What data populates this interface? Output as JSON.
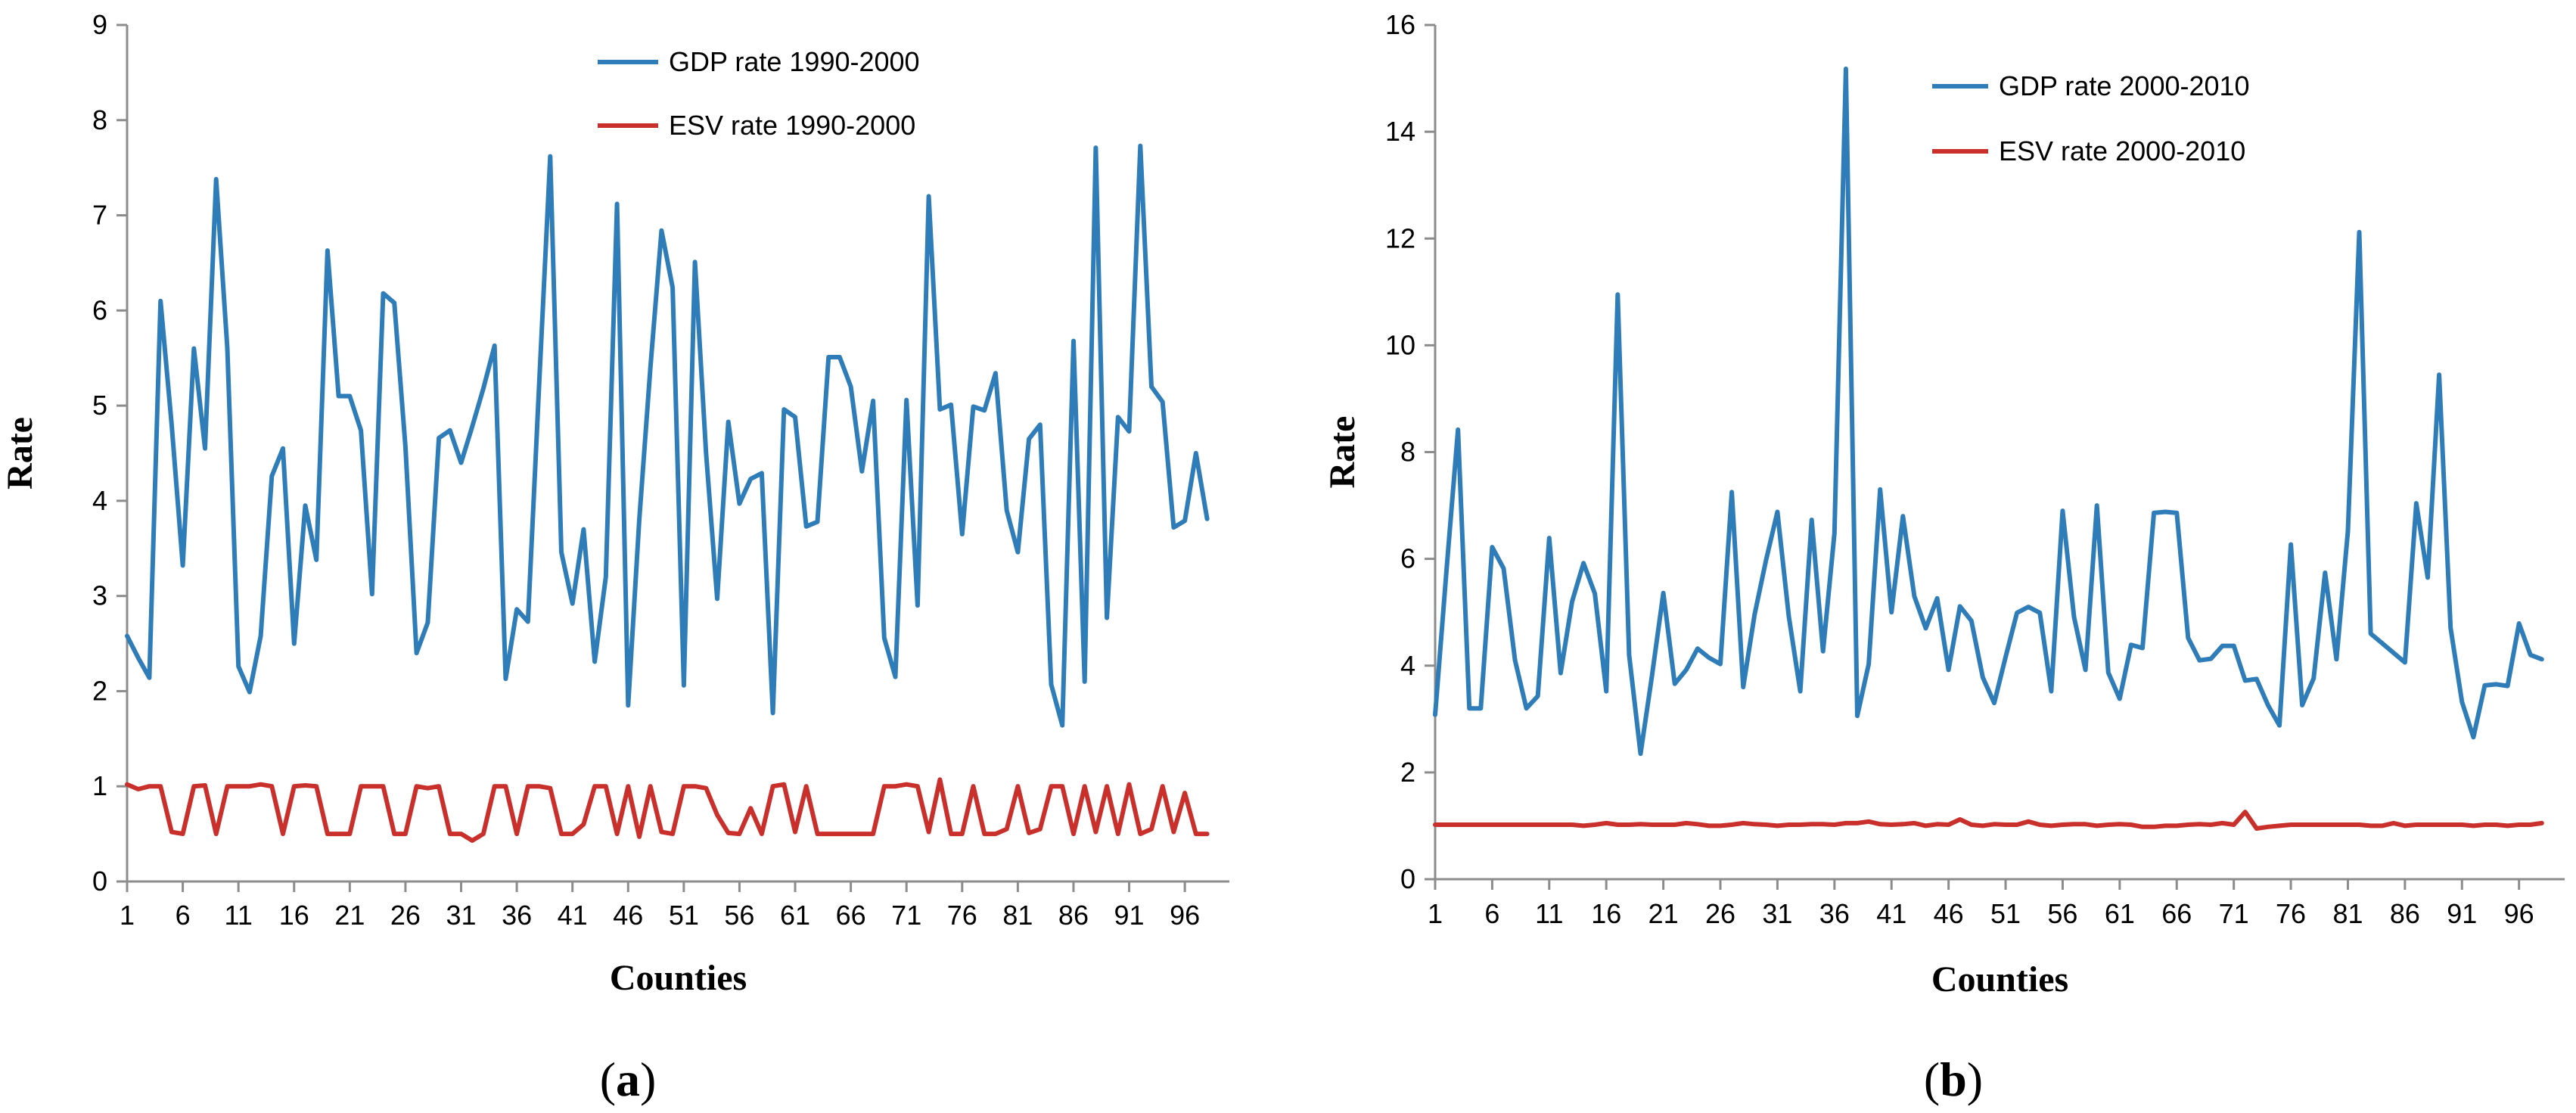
{
  "colors": {
    "gdp": "#2e7cb8",
    "esv": "#c9302c",
    "axis": "#8c8c8c"
  },
  "chart_data": [
    {
      "type": "line",
      "panel_label": "a",
      "xlabel": "Counties",
      "ylabel": "Rate",
      "ylim": [
        0,
        9
      ],
      "yticks": [
        0,
        1,
        2,
        3,
        4,
        5,
        6,
        7,
        8,
        9
      ],
      "xticks": [
        1,
        6,
        11,
        16,
        21,
        26,
        31,
        36,
        41,
        46,
        51,
        56,
        61,
        66,
        71,
        76,
        81,
        86,
        91,
        96
      ],
      "xmax": 100,
      "legend_position": "top-right",
      "series": [
        {
          "name": "GDP rate 1990-2000",
          "color": "#2e7cb8",
          "values": [
            2.58,
            2.35,
            2.14,
            6.1,
            4.8,
            3.32,
            5.6,
            4.55,
            7.38,
            5.6,
            2.26,
            1.99,
            2.58,
            4.26,
            4.55,
            2.5,
            3.95,
            3.38,
            6.63,
            5.1,
            5.1,
            4.74,
            3.02,
            6.18,
            6.08,
            4.57,
            2.4,
            2.72,
            4.66,
            4.74,
            4.4,
            4.78,
            5.18,
            5.63,
            2.13,
            2.86,
            2.73,
            5.2,
            7.62,
            3.46,
            2.92,
            3.7,
            2.31,
            3.2,
            7.12,
            1.85,
            3.8,
            5.4,
            6.84,
            6.24,
            2.06,
            6.51,
            4.5,
            2.97,
            4.83,
            3.97,
            4.23,
            4.29,
            1.77,
            4.96,
            4.88,
            3.73,
            3.78,
            5.51,
            5.51,
            5.2,
            4.31,
            5.05,
            2.56,
            2.15,
            5.06,
            2.9,
            7.2,
            4.96,
            5.01,
            3.65,
            4.99,
            4.95,
            5.34,
            3.9,
            3.46,
            4.65,
            4.8,
            2.07,
            1.64,
            5.68,
            2.1,
            7.71,
            2.77,
            4.88,
            4.73,
            7.73,
            5.2,
            5.04,
            3.72,
            3.79,
            4.5,
            3.81
          ]
        },
        {
          "name": "ESV rate 1990-2000",
          "color": "#c9302c",
          "values": [
            1.02,
            0.97,
            1.0,
            1.0,
            0.52,
            0.5,
            1.0,
            1.01,
            0.5,
            1.0,
            1.0,
            1.0,
            1.02,
            1.0,
            0.5,
            1.0,
            1.01,
            1.0,
            0.5,
            0.5,
            0.5,
            1.0,
            1.0,
            1.0,
            0.5,
            0.5,
            1.0,
            0.98,
            1.0,
            0.5,
            0.5,
            0.43,
            0.5,
            1.0,
            1.0,
            0.5,
            1.0,
            1.0,
            0.98,
            0.5,
            0.5,
            0.6,
            1.0,
            1.0,
            0.5,
            1.0,
            0.47,
            1.0,
            0.52,
            0.5,
            1.0,
            1.0,
            0.98,
            0.7,
            0.51,
            0.5,
            0.77,
            0.5,
            1.0,
            1.02,
            0.52,
            1.0,
            0.5,
            0.5,
            0.5,
            0.5,
            0.5,
            0.5,
            1.0,
            1.0,
            1.02,
            1.0,
            0.52,
            1.07,
            0.5,
            0.5,
            1.0,
            0.5,
            0.5,
            0.55,
            1.0,
            0.51,
            0.55,
            1.0,
            1.0,
            0.5,
            1.0,
            0.52,
            1.0,
            0.5,
            1.02,
            0.5,
            0.55,
            1.0,
            0.52,
            0.93,
            0.5,
            0.5
          ]
        }
      ]
    },
    {
      "type": "line",
      "panel_label": "b",
      "xlabel": "Counties",
      "ylabel": "Rate",
      "ylim": [
        0,
        16
      ],
      "yticks": [
        0,
        2,
        4,
        6,
        8,
        10,
        12,
        14,
        16
      ],
      "xticks": [
        1,
        6,
        11,
        16,
        21,
        26,
        31,
        36,
        41,
        46,
        51,
        56,
        61,
        66,
        71,
        76,
        81,
        86,
        91,
        96
      ],
      "xmax": 100,
      "legend_position": "top-center",
      "series": [
        {
          "name": "GDP rate 2000-2010",
          "color": "#2e7cb8",
          "values": [
            3.08,
            5.8,
            8.42,
            3.2,
            3.2,
            6.22,
            5.82,
            4.1,
            3.2,
            3.43,
            6.39,
            3.86,
            5.2,
            5.92,
            5.35,
            3.52,
            10.95,
            4.2,
            2.35,
            3.8,
            5.36,
            3.66,
            3.92,
            4.32,
            4.15,
            4.03,
            7.25,
            3.6,
            4.96,
            5.97,
            6.88,
            4.92,
            3.52,
            6.73,
            4.27,
            6.48,
            15.18,
            3.06,
            4.03,
            7.3,
            5.0,
            6.8,
            5.3,
            4.7,
            5.26,
            3.92,
            5.11,
            4.84,
            3.78,
            3.3,
            4.16,
            4.99,
            5.1,
            4.99,
            3.52,
            6.9,
            4.91,
            3.92,
            7.0,
            3.87,
            3.38,
            4.39,
            4.33,
            6.86,
            6.88,
            6.86,
            4.52,
            4.1,
            4.13,
            4.37,
            4.37,
            3.72,
            3.75,
            3.26,
            2.88,
            6.27,
            3.26,
            3.76,
            5.74,
            4.12,
            6.52,
            12.12,
            4.6,
            4.42,
            4.24,
            4.06,
            7.04,
            5.65,
            9.45,
            4.71,
            3.32,
            2.66,
            3.63,
            3.65,
            3.62,
            4.79,
            4.2,
            4.12
          ]
        },
        {
          "name": "ESV rate 2000-2010",
          "color": "#c9302c",
          "values": [
            1.02,
            1.02,
            1.02,
            1.02,
            1.02,
            1.02,
            1.02,
            1.02,
            1.02,
            1.02,
            1.02,
            1.02,
            1.02,
            1.0,
            1.02,
            1.05,
            1.02,
            1.02,
            1.03,
            1.02,
            1.02,
            1.02,
            1.05,
            1.03,
            1.0,
            1.0,
            1.02,
            1.05,
            1.03,
            1.02,
            1.0,
            1.02,
            1.02,
            1.03,
            1.03,
            1.02,
            1.05,
            1.05,
            1.08,
            1.03,
            1.02,
            1.03,
            1.05,
            1.0,
            1.03,
            1.02,
            1.12,
            1.02,
            1.0,
            1.03,
            1.02,
            1.02,
            1.08,
            1.02,
            1.0,
            1.02,
            1.03,
            1.03,
            1.0,
            1.02,
            1.03,
            1.02,
            0.98,
            0.98,
            1.0,
            1.0,
            1.02,
            1.03,
            1.02,
            1.05,
            1.02,
            1.26,
            0.95,
            0.98,
            1.0,
            1.02,
            1.02,
            1.02,
            1.02,
            1.02,
            1.02,
            1.02,
            1.0,
            1.0,
            1.05,
            1.0,
            1.02,
            1.02,
            1.02,
            1.02,
            1.02,
            1.0,
            1.02,
            1.02,
            1.0,
            1.02,
            1.02,
            1.05
          ]
        }
      ]
    }
  ]
}
